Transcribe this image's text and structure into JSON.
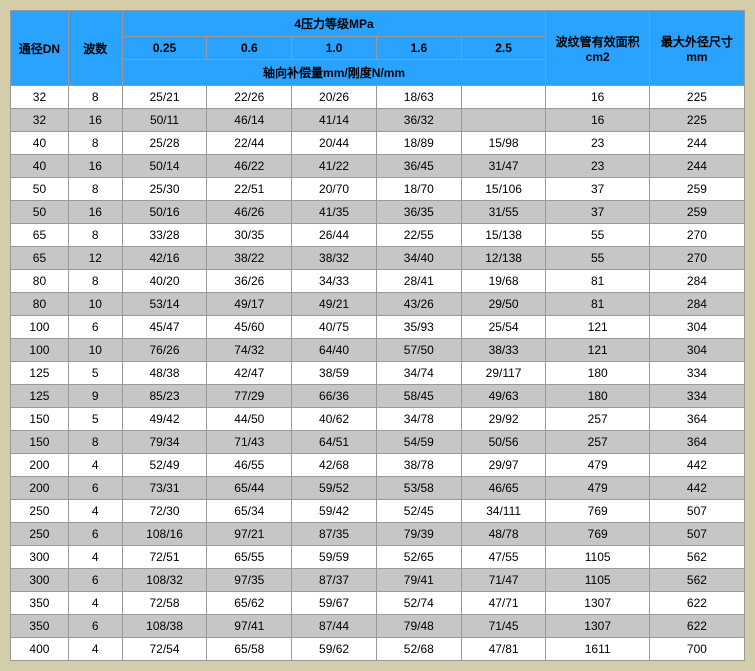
{
  "table": {
    "header": {
      "dn": "通径DN",
      "bo": "波数",
      "pressure_group": "4压力等级MPa",
      "pressure_levels": [
        "0.25",
        "0.6",
        "1.0",
        "1.6",
        "2.5"
      ],
      "pressure_sub": "轴向补偿量mm/刚度N/mm",
      "area": "波纹管有效面积cm2",
      "od": "最大外径尺寸mm"
    },
    "header_bg": "#29a3ff",
    "row_alt_bg": "#c6c6c6",
    "row_bg": "#ffffff",
    "border_color": "#999999",
    "font_size": 12,
    "columns": [
      "dn",
      "bo",
      "p025",
      "p06",
      "p10",
      "p16",
      "p25",
      "area",
      "od"
    ],
    "rows": [
      [
        "32",
        "8",
        "25/21",
        "22/26",
        "20/26",
        "18/63",
        "",
        "16",
        "225"
      ],
      [
        "32",
        "16",
        "50/11",
        "46/14",
        "41/14",
        "36/32",
        "",
        "16",
        "225"
      ],
      [
        "40",
        "8",
        "25/28",
        "22/44",
        "20/44",
        "18/89",
        "15/98",
        "23",
        "244"
      ],
      [
        "40",
        "16",
        "50/14",
        "46/22",
        "41/22",
        "36/45",
        "31/47",
        "23",
        "244"
      ],
      [
        "50",
        "8",
        "25/30",
        "22/51",
        "20/70",
        "18/70",
        "15/106",
        "37",
        "259"
      ],
      [
        "50",
        "16",
        "50/16",
        "46/26",
        "41/35",
        "36/35",
        "31/55",
        "37",
        "259"
      ],
      [
        "65",
        "8",
        "33/28",
        "30/35",
        "26/44",
        "22/55",
        "15/138",
        "55",
        "270"
      ],
      [
        "65",
        "12",
        "42/16",
        "38/22",
        "38/32",
        "34/40",
        "12/138",
        "55",
        "270"
      ],
      [
        "80",
        "8",
        "40/20",
        "36/26",
        "34/33",
        "28/41",
        "19/68",
        "81",
        "284"
      ],
      [
        "80",
        "10",
        "53/14",
        "49/17",
        "49/21",
        "43/26",
        "29/50",
        "81",
        "284"
      ],
      [
        "100",
        "6",
        "45/47",
        "45/60",
        "40/75",
        "35/93",
        "25/54",
        "121",
        "304"
      ],
      [
        "100",
        "10",
        "76/26",
        "74/32",
        "64/40",
        "57/50",
        "38/33",
        "121",
        "304"
      ],
      [
        "125",
        "5",
        "48/38",
        "42/47",
        "38/59",
        "34/74",
        "29/117",
        "180",
        "334"
      ],
      [
        "125",
        "9",
        "85/23",
        "77/29",
        "66/36",
        "58/45",
        "49/63",
        "180",
        "334"
      ],
      [
        "150",
        "5",
        "49/42",
        "44/50",
        "40/62",
        "34/78",
        "29/92",
        "257",
        "364"
      ],
      [
        "150",
        "8",
        "79/34",
        "71/43",
        "64/51",
        "54/59",
        "50/56",
        "257",
        "364"
      ],
      [
        "200",
        "4",
        "52/49",
        "46/55",
        "42/68",
        "38/78",
        "29/97",
        "479",
        "442"
      ],
      [
        "200",
        "6",
        "73/31",
        "65/44",
        "59/52",
        "53/58",
        "46/65",
        "479",
        "442"
      ],
      [
        "250",
        "4",
        "72/30",
        "65/34",
        "59/42",
        "52/45",
        "34/111",
        "769",
        "507"
      ],
      [
        "250",
        "6",
        "108/16",
        "97/21",
        "87/35",
        "79/39",
        "48/78",
        "769",
        "507"
      ],
      [
        "300",
        "4",
        "72/51",
        "65/55",
        "59/59",
        "52/65",
        "47/55",
        "1105",
        "562"
      ],
      [
        "300",
        "6",
        "108/32",
        "97/35",
        "87/37",
        "79/41",
        "71/47",
        "1105",
        "562"
      ],
      [
        "350",
        "4",
        "72/58",
        "65/62",
        "59/67",
        "52/74",
        "47/71",
        "1307",
        "622"
      ],
      [
        "350",
        "6",
        "108/38",
        "97/41",
        "87/44",
        "79/48",
        "71/45",
        "1307",
        "622"
      ],
      [
        "400",
        "4",
        "72/54",
        "65/58",
        "59/62",
        "52/68",
        "47/81",
        "1611",
        "700"
      ]
    ]
  }
}
